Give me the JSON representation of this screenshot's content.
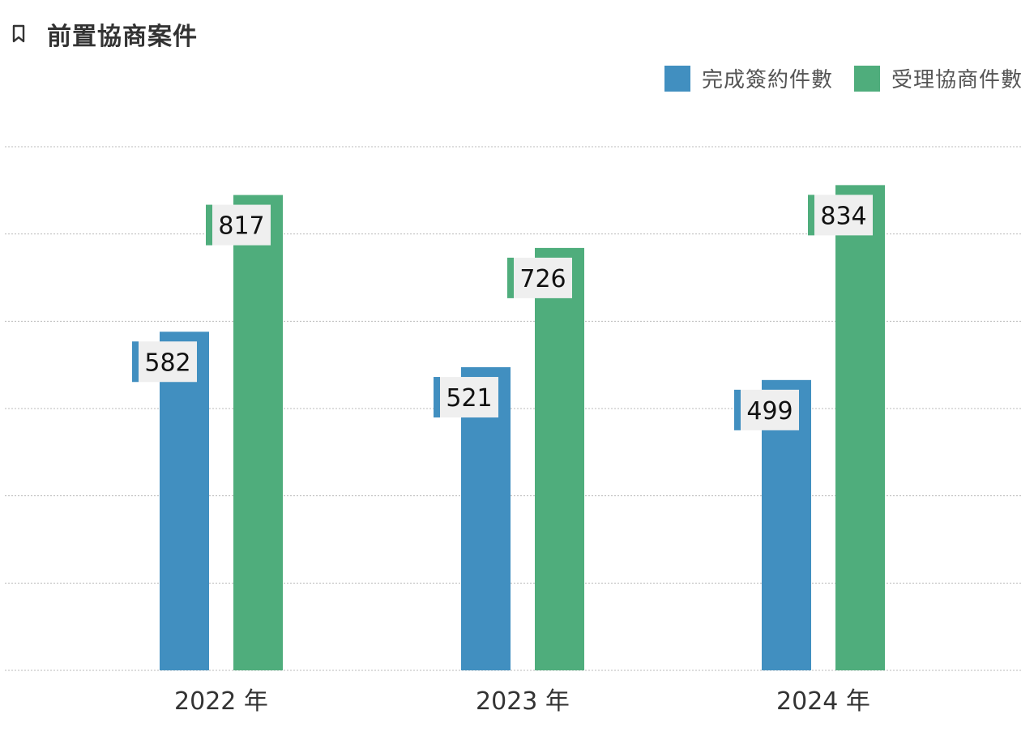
{
  "header": {
    "title": "前置協商案件",
    "icon": "bookmark-icon"
  },
  "chart_data": {
    "type": "bar",
    "title": "前置協商案件",
    "categories": [
      "2022 年",
      "2023 年",
      "2024 年"
    ],
    "series": [
      {
        "name": "完成簽約件數",
        "color": "#418FC0",
        "values": [
          582,
          521,
          499
        ]
      },
      {
        "name": "受理協商件數",
        "color": "#4FAD7C",
        "values": [
          817,
          726,
          834
        ]
      }
    ],
    "xlabel": "",
    "ylabel": "",
    "ylim": [
      0,
      900
    ],
    "grid": true,
    "legend": "top-right"
  }
}
